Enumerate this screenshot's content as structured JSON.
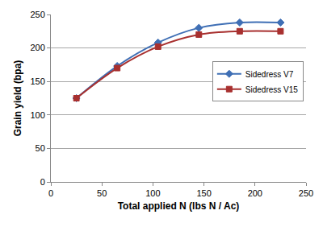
{
  "chart_data": {
    "type": "line",
    "x_label": "Total applied N (lbs N / Ac)",
    "y_label": "Grain yield (bpa)",
    "x": [
      25,
      65,
      105,
      145,
      185,
      225
    ],
    "series": [
      {
        "name": "Sidedress V7",
        "color": "#3f6fb5",
        "marker": "diamond",
        "line_style": "solid",
        "values": [
          125,
          173,
          208,
          230,
          238,
          238
        ]
      },
      {
        "name": "Sidedress V15",
        "color": "#a8302f",
        "marker": "square",
        "line_style": "solid",
        "values": [
          125,
          170,
          202,
          220,
          225,
          225
        ]
      }
    ],
    "xlim": [
      0,
      250
    ],
    "xticks": [
      0,
      50,
      100,
      150,
      200,
      250
    ],
    "ylim": [
      0,
      250
    ],
    "yticks": [
      0,
      50,
      100,
      150,
      200,
      250
    ],
    "grid": true,
    "legend": "right"
  }
}
